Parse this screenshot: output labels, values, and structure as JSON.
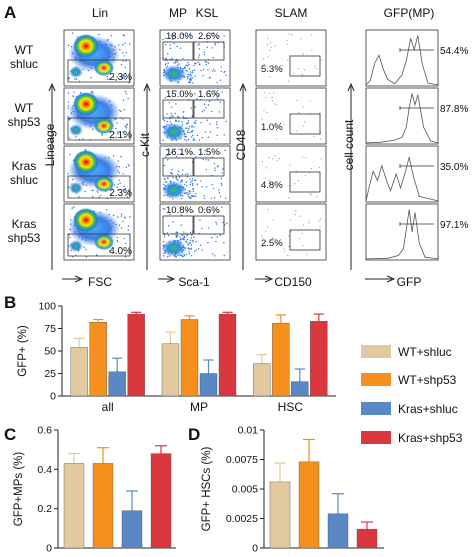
{
  "panel_a": {
    "letter": "A",
    "column_titles": [
      "Lin",
      "MP",
      "KSL",
      "SLAM",
      "GFP(MP)"
    ],
    "row_labels": [
      [
        "WT",
        "shluc"
      ],
      [
        "WT",
        "shp53"
      ],
      [
        "Kras",
        "shluc"
      ],
      [
        "Kras",
        "shp53"
      ]
    ],
    "y_labels": [
      "Lineage",
      "c-Kit",
      "CD48",
      "cell count"
    ],
    "x_labels": [
      "FSC",
      "Sca-1",
      "CD150",
      "GFP"
    ],
    "lin_pct": [
      "2.3%",
      "2.1%",
      "2.3%",
      "4.0%"
    ],
    "mp_pct": [
      "18.0%",
      "15.0%",
      "16.1%",
      "10.8%"
    ],
    "ksl_pct": [
      "2.6%",
      "1.6%",
      "1.5%",
      "0.6%"
    ],
    "slam_pct": [
      "5.3%",
      "1.0%",
      "4.8%",
      "2.5%"
    ],
    "gfp_pct": [
      "54.4%",
      "87.8%",
      "35.0%",
      "97.1%"
    ]
  },
  "legend": {
    "items": [
      {
        "label": "WT+shluc",
        "color": "#e3c9a0"
      },
      {
        "label": "WT+shp53",
        "color": "#f5901e"
      },
      {
        "label": "Kras+shluc",
        "color": "#5a88c4"
      },
      {
        "label": "Kras+shp53",
        "color": "#d9363e"
      }
    ]
  },
  "chart_data": [
    {
      "type": "bar",
      "panel": "B",
      "ylabel": "GFP+ (%)",
      "categories": [
        "all",
        "MP",
        "HSC"
      ],
      "ylim": [
        0,
        100
      ],
      "yticks": [
        "0",
        "25",
        "50",
        "75",
        "100"
      ],
      "series": [
        {
          "name": "WT+shluc",
          "values": [
            54,
            58,
            36
          ],
          "errors": [
            10,
            13,
            10
          ]
        },
        {
          "name": "WT+shp53",
          "values": [
            82,
            85,
            81
          ],
          "errors": [
            3,
            4,
            9
          ]
        },
        {
          "name": "Kras+shluc",
          "values": [
            27,
            25,
            16
          ],
          "errors": [
            15,
            15,
            14
          ]
        },
        {
          "name": "Kras+shp53",
          "values": [
            91,
            91,
            83
          ],
          "errors": [
            2,
            2,
            8
          ]
        }
      ]
    },
    {
      "type": "bar",
      "panel": "C",
      "ylabel": "GFP+MPs (%)",
      "ylim": [
        0,
        0.6
      ],
      "yticks": [
        "0",
        "0.2",
        "0.4",
        "0.6"
      ],
      "series": [
        {
          "name": "WT+shluc",
          "values": [
            0.43
          ],
          "errors": [
            0.05
          ]
        },
        {
          "name": "WT+shp53",
          "values": [
            0.43
          ],
          "errors": [
            0.08
          ]
        },
        {
          "name": "Kras+shluc",
          "values": [
            0.19
          ],
          "errors": [
            0.1
          ]
        },
        {
          "name": "Kras+shp53",
          "values": [
            0.48
          ],
          "errors": [
            0.04
          ]
        }
      ]
    },
    {
      "type": "bar",
      "panel": "D",
      "ylabel": "GFP+ HSCs (%)",
      "ylim": [
        0,
        0.01
      ],
      "yticks": [
        "0",
        "0.0025",
        "0.005",
        "0.0075",
        "0.01"
      ],
      "series": [
        {
          "name": "WT+shluc",
          "values": [
            0.0056
          ],
          "errors": [
            0.0016
          ]
        },
        {
          "name": "WT+shp53",
          "values": [
            0.0073
          ],
          "errors": [
            0.0019
          ]
        },
        {
          "name": "Kras+shluc",
          "values": [
            0.0029
          ],
          "errors": [
            0.0017
          ]
        },
        {
          "name": "Kras+shp53",
          "values": [
            0.0016
          ],
          "errors": [
            0.0006
          ]
        }
      ]
    }
  ]
}
